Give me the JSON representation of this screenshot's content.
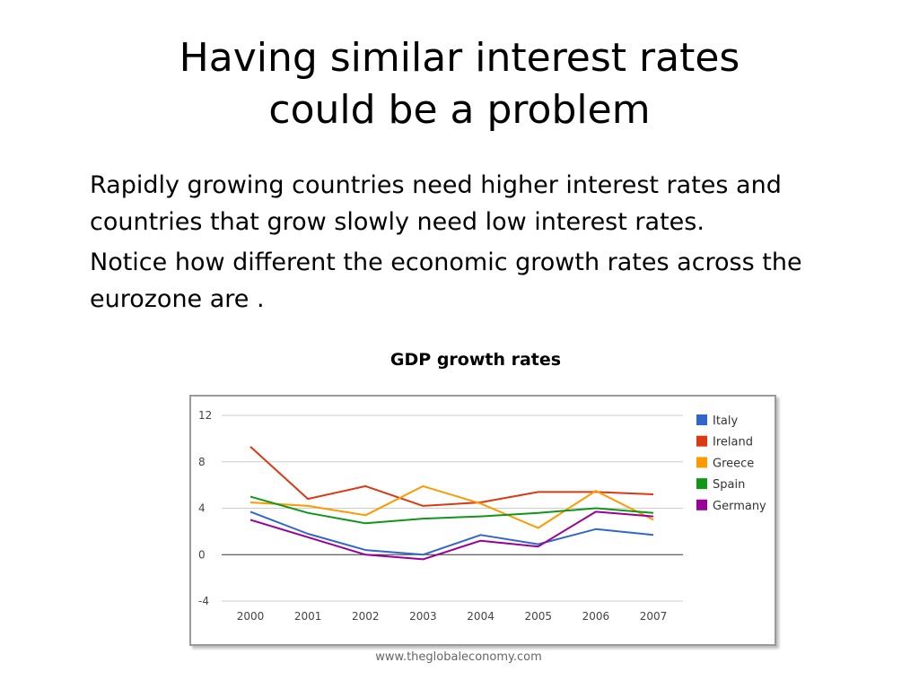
{
  "slide": {
    "title_line1": "Having similar interest rates",
    "title_line2": "could be a problem",
    "paragraph1": "Rapidly growing countries need higher interest rates and countries that grow slowly need low interest rates.",
    "paragraph2": "Notice how different the economic growth rates across the eurozone are .",
    "source": "www.theglobaleconomy.com"
  },
  "chart_data": {
    "type": "line",
    "title": "GDP growth rates",
    "xlabel": "",
    "ylabel": "",
    "x": [
      "2000",
      "2001",
      "2002",
      "2003",
      "2004",
      "2005",
      "2006",
      "2007"
    ],
    "ylim": [
      -4,
      12
    ],
    "yticks": [
      -4,
      0,
      4,
      8,
      12
    ],
    "grid": true,
    "legend_position": "right",
    "series": [
      {
        "name": "Italy",
        "color": "#3366cc",
        "values": [
          3.7,
          1.8,
          0.4,
          0.0,
          1.7,
          0.9,
          2.2,
          1.7
        ]
      },
      {
        "name": "Ireland",
        "color": "#dc3912",
        "values": [
          9.3,
          4.8,
          5.9,
          4.2,
          4.5,
          5.4,
          5.4,
          5.2
        ]
      },
      {
        "name": "Greece",
        "color": "#ff9900",
        "values": [
          4.5,
          4.2,
          3.4,
          5.9,
          4.4,
          2.3,
          5.5,
          3.0
        ]
      },
      {
        "name": "Spain",
        "color": "#109618",
        "values": [
          5.0,
          3.6,
          2.7,
          3.1,
          3.3,
          3.6,
          4.0,
          3.6
        ]
      },
      {
        "name": "Germany",
        "color": "#990099",
        "values": [
          3.0,
          1.5,
          0.0,
          -0.4,
          1.2,
          0.7,
          3.7,
          3.3
        ]
      }
    ]
  }
}
